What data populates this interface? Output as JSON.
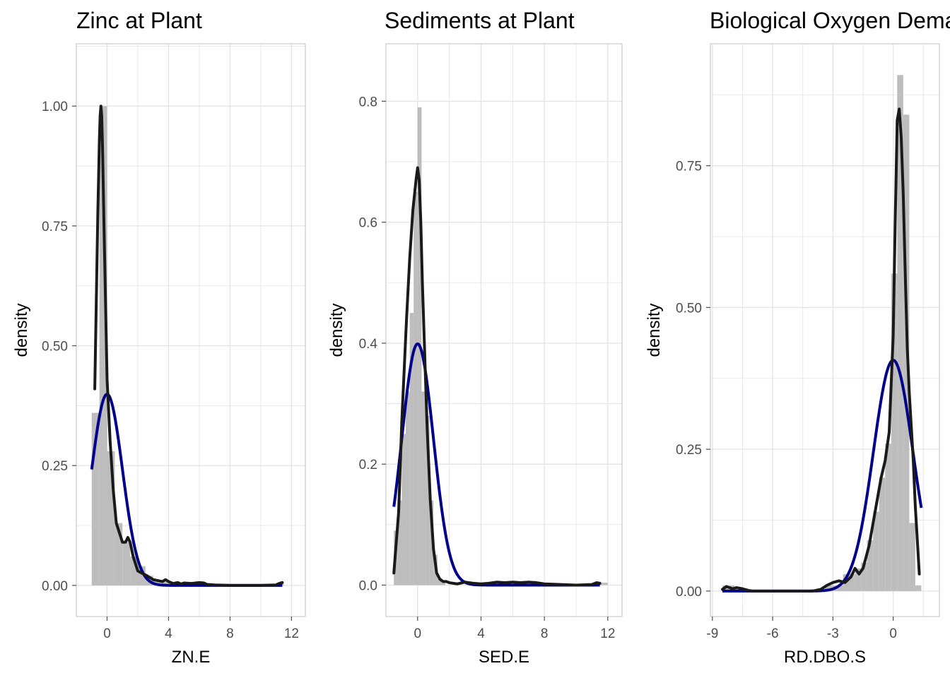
{
  "colors": {
    "histogram": "#bdbdbd",
    "empirical_density": "#1a1a1a",
    "normal_density": "#00008b",
    "grid": "#e3e3e3",
    "panel_border": "#cccccc"
  },
  "chart_data": [
    {
      "type": "histogram+density",
      "title": "Zinc at Plant",
      "xlabel": "ZN.E",
      "ylabel": "density",
      "grid": true,
      "xlim": [
        -2.0,
        12.9
      ],
      "ylim": [
        -0.065,
        1.13
      ],
      "x_ticks": [
        0,
        4,
        8,
        12
      ],
      "x_tick_labels": [
        "0",
        "4",
        "8",
        "12"
      ],
      "y_ticks": [
        0,
        0.25,
        0.5,
        0.75,
        1.0
      ],
      "y_tick_labels": [
        "0.00",
        "0.25",
        "0.50",
        "0.75",
        "1.00"
      ],
      "histogram": {
        "breaks": [
          -1.0,
          -0.5,
          0.0,
          0.5,
          1.0,
          1.5,
          2.0,
          2.5,
          3.0,
          3.5,
          4.0,
          4.5,
          5.0,
          5.5,
          6.0,
          6.5,
          7.0,
          7.5,
          8.0,
          8.5,
          9.0,
          9.5,
          10.0,
          10.5,
          11.0,
          11.5
        ],
        "density": [
          0.36,
          1.0,
          0.28,
          0.13,
          0.09,
          0.06,
          0.04,
          0.02,
          0.01,
          0.008,
          0.006,
          0.004,
          0.005,
          0.005,
          0.004,
          0,
          0,
          0,
          0,
          0,
          0,
          0,
          0,
          0,
          0.006
        ]
      },
      "density_curve": {
        "x": [
          -0.8,
          -0.6,
          -0.5,
          -0.45,
          -0.4,
          -0.35,
          -0.3,
          -0.2,
          0.0,
          0.2,
          0.4,
          0.6,
          0.8,
          1.0,
          1.2,
          1.35,
          1.5,
          1.7,
          2.0,
          2.3,
          2.6,
          3.0,
          3.3,
          3.6,
          3.8,
          4.0,
          4.3,
          4.6,
          4.8,
          5.0,
          5.5,
          6.0,
          6.3,
          6.5,
          7.0,
          8.0,
          9.0,
          10.0,
          11.0,
          11.2,
          11.4
        ],
        "y": [
          0.41,
          0.78,
          0.93,
          0.98,
          1.0,
          0.98,
          0.92,
          0.75,
          0.43,
          0.3,
          0.2,
          0.13,
          0.11,
          0.09,
          0.09,
          0.1,
          0.09,
          0.06,
          0.03,
          0.025,
          0.02,
          0.012,
          0.01,
          0.008,
          0.012,
          0.008,
          0.004,
          0.006,
          0.003,
          0.005,
          0.004,
          0.006,
          0.005,
          0.002,
          0.001,
          0,
          0,
          0,
          0.001,
          0.004,
          0.006
        ]
      },
      "normal_curve": {
        "mean": 0.0,
        "sd": 1.0,
        "x_range": [
          -1.0,
          11.4
        ]
      }
    },
    {
      "type": "histogram+density",
      "title": "Sediments at Plant",
      "xlabel": "SED.E",
      "ylabel": "density",
      "grid": true,
      "xlim": [
        -2.0,
        12.9
      ],
      "ylim": [
        -0.052,
        0.895
      ],
      "x_ticks": [
        0,
        4,
        8,
        12
      ],
      "x_tick_labels": [
        "0",
        "4",
        "8",
        "12"
      ],
      "y_ticks": [
        0,
        0.2,
        0.4,
        0.6,
        0.8
      ],
      "y_tick_labels": [
        "0.0",
        "0.2",
        "0.4",
        "0.6",
        "0.8"
      ],
      "histogram": {
        "breaks": [
          -1.5,
          -1.25,
          -1.0,
          -0.75,
          -0.5,
          -0.25,
          0.0,
          0.25,
          0.5,
          0.75,
          1.0,
          1.25,
          1.5,
          1.75,
          2.0,
          2.5,
          3.0,
          3.5,
          4.0,
          4.5,
          5.0,
          5.5,
          6.0,
          6.5,
          7.0,
          7.5,
          8.0,
          8.5,
          9.0,
          9.5,
          10.0,
          10.5,
          11.0,
          11.5,
          12.0
        ],
        "density": [
          0.09,
          0.14,
          0.25,
          0.32,
          0.45,
          0.65,
          0.79,
          0.32,
          0.28,
          0.14,
          0.05,
          0.01,
          0.004,
          0,
          0,
          0,
          0,
          0,
          0,
          0.004,
          0.004,
          0.004,
          0.004,
          0.004,
          0.004,
          0,
          0,
          0,
          0,
          0,
          0,
          0,
          0.004,
          0.004
        ]
      },
      "density_curve": {
        "x": [
          -1.5,
          -1.2,
          -1.0,
          -0.7,
          -0.5,
          -0.3,
          -0.1,
          0.0,
          0.1,
          0.2,
          0.3,
          0.45,
          0.6,
          0.8,
          1.0,
          1.2,
          1.4,
          1.6,
          1.8,
          2.0,
          2.5,
          3.0,
          3.5,
          4.0,
          4.5,
          5.0,
          5.5,
          6.0,
          6.5,
          7.0,
          7.5,
          8.0,
          9.0,
          10.0,
          11.0,
          11.3,
          11.5
        ],
        "y": [
          0.02,
          0.12,
          0.27,
          0.44,
          0.54,
          0.62,
          0.67,
          0.69,
          0.67,
          0.6,
          0.5,
          0.38,
          0.26,
          0.14,
          0.06,
          0.02,
          0.01,
          0.006,
          0.006,
          0.004,
          0.002,
          0.005,
          0.003,
          0.002,
          0.003,
          0.005,
          0.004,
          0.005,
          0.004,
          0.005,
          0.004,
          0.002,
          0.001,
          0.0,
          0.001,
          0.004,
          0.003
        ]
      },
      "normal_curve": {
        "mean": 0.0,
        "sd": 1.0,
        "x_range": [
          -1.5,
          11.5
        ]
      }
    },
    {
      "type": "histogram+density",
      "title": "Biological Oxygen Demand",
      "xlabel": "RD.DBO.S",
      "ylabel": "density",
      "grid": true,
      "xlim": [
        -9.1,
        2.3
      ],
      "ylim": [
        -0.045,
        0.965
      ],
      "x_ticks": [
        -9,
        -6,
        -3,
        0
      ],
      "x_tick_labels": [
        "-9",
        "-6",
        "-3",
        "0"
      ],
      "y_ticks": [
        0,
        0.25,
        0.5,
        0.75
      ],
      "y_tick_labels": [
        "0.00",
        "0.25",
        "0.50",
        "0.75"
      ],
      "histogram": {
        "breaks": [
          -8.5,
          -8.2,
          -7.9,
          -7.6,
          -7.3,
          -7.0,
          -6.7,
          -6.4,
          -6.1,
          -5.8,
          -5.5,
          -5.2,
          -4.9,
          -4.6,
          -4.3,
          -4.0,
          -3.7,
          -3.4,
          -3.1,
          -2.8,
          -2.5,
          -2.2,
          -1.9,
          -1.6,
          -1.3,
          -1.0,
          -0.7,
          -0.4,
          -0.1,
          0.2,
          0.5,
          0.8,
          1.1,
          1.4
        ],
        "density": [
          0.01,
          0.01,
          0.004,
          0.004,
          0,
          0,
          0,
          0,
          0,
          0,
          0,
          0,
          0,
          0,
          0,
          0,
          0,
          0.01,
          0.01,
          0.01,
          0.03,
          0.03,
          0.04,
          0.05,
          0.09,
          0.14,
          0.2,
          0.26,
          0.56,
          0.91,
          0.84,
          0.12,
          0.01
        ]
      },
      "density_curve": {
        "x": [
          -8.5,
          -8.3,
          -8.0,
          -7.8,
          -7.5,
          -7.2,
          -7.0,
          -6.0,
          -5.0,
          -4.0,
          -3.6,
          -3.3,
          -3.0,
          -2.7,
          -2.4,
          -2.1,
          -1.9,
          -1.7,
          -1.5,
          -1.2,
          -1.0,
          -0.8,
          -0.6,
          -0.4,
          -0.2,
          0.0,
          0.1,
          0.2,
          0.3,
          0.4,
          0.5,
          0.6,
          0.7,
          0.8,
          0.9,
          1.0,
          1.1,
          1.2,
          1.3
        ],
        "y": [
          0.003,
          0.008,
          0.004,
          0.006,
          0.004,
          0.001,
          0.0,
          0.0,
          0.0,
          0.0,
          0.003,
          0.01,
          0.015,
          0.018,
          0.015,
          0.025,
          0.04,
          0.03,
          0.04,
          0.08,
          0.12,
          0.16,
          0.2,
          0.23,
          0.28,
          0.45,
          0.65,
          0.83,
          0.85,
          0.8,
          0.7,
          0.56,
          0.43,
          0.35,
          0.29,
          0.23,
          0.15,
          0.09,
          0.03
        ]
      },
      "normal_curve": {
        "mean": 0.0,
        "sd": 0.98,
        "x_range": [
          -8.5,
          1.4
        ]
      }
    }
  ]
}
